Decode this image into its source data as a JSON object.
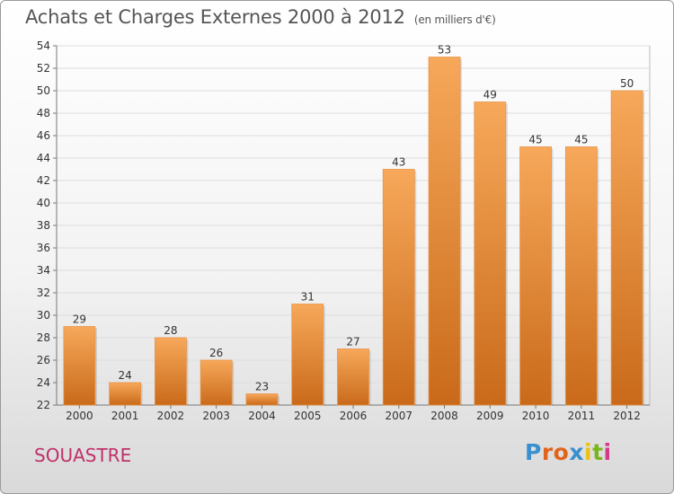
{
  "chart_data": {
    "type": "bar",
    "title": "Achats et Charges Externes 2000 à 2012",
    "subtitle": "(en milliers d'€)",
    "categories": [
      "2000",
      "2001",
      "2002",
      "2003",
      "2004",
      "2005",
      "2006",
      "2007",
      "2008",
      "2009",
      "2010",
      "2011",
      "2012"
    ],
    "values": [
      29,
      24,
      28,
      26,
      23,
      31,
      27,
      43,
      53,
      49,
      45,
      45,
      50
    ],
    "ylim": [
      22,
      54
    ],
    "yticks": [
      22,
      24,
      26,
      28,
      30,
      32,
      34,
      36,
      38,
      40,
      42,
      44,
      46,
      48,
      50,
      52,
      54
    ],
    "grid": true,
    "bar_color_top": "#f7a85a",
    "bar_color_bottom": "#c96a1a"
  },
  "location": "SOUASTRE",
  "logo": {
    "letters": [
      "P",
      "r",
      "o",
      "x",
      "i",
      "t",
      "i"
    ],
    "colors": [
      "#3a8fd0",
      "#e0651c",
      "#e0651c",
      "#3a8fd0",
      "#e8c21a",
      "#7ab51d",
      "#d33a8a"
    ]
  }
}
